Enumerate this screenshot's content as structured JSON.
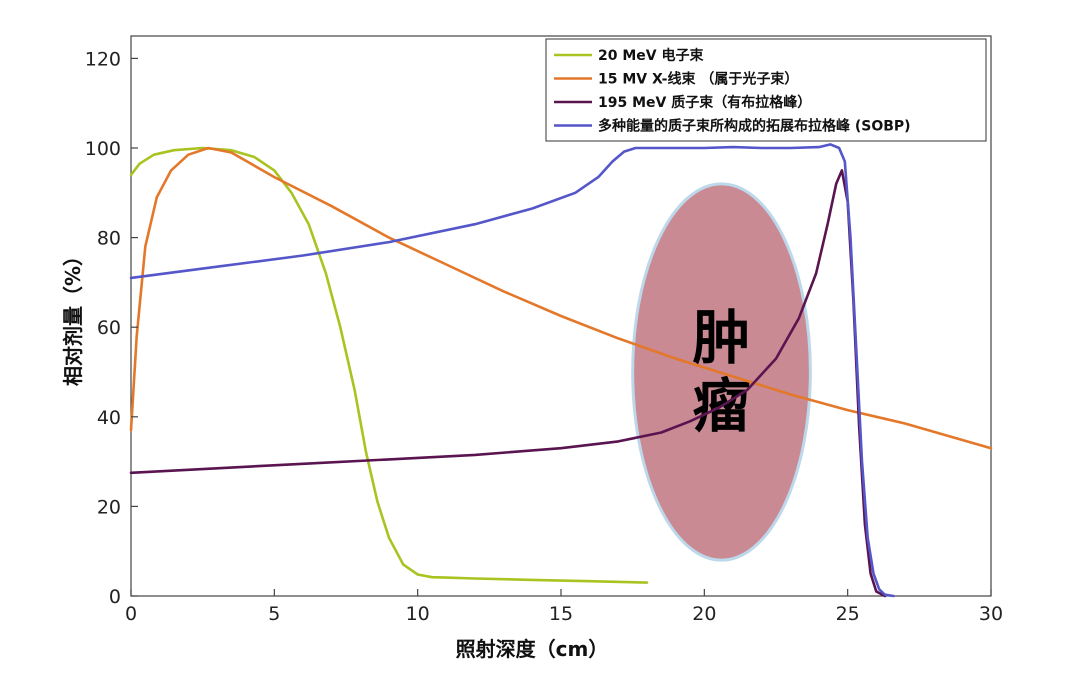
{
  "chart_data": {
    "type": "line",
    "xlabel": "照射深度（cm）",
    "ylabel": "相对剂量（%）",
    "xlim": [
      0,
      30
    ],
    "ylim": [
      0,
      125
    ],
    "xticks": [
      0,
      5,
      10,
      15,
      20,
      25,
      30
    ],
    "yticks": [
      0,
      20,
      40,
      60,
      80,
      100,
      120
    ],
    "grid": false,
    "legend_position": "top-right",
    "annotation": {
      "label_line1": "肿",
      "label_line2": "瘤",
      "center": [
        20.6,
        50
      ],
      "semi_axis_x": 3.1,
      "semi_axis_y": 42,
      "fill_color": "#c98a93",
      "stroke_color": "#bcd8ea"
    },
    "series": [
      {
        "name": "20 MeV  电子束",
        "color": "#a9c321",
        "x": [
          0,
          0.3,
          0.8,
          1.5,
          2.5,
          3.5,
          4.3,
          5.0,
          5.6,
          6.2,
          6.8,
          7.3,
          7.8,
          8.2,
          8.6,
          9.0,
          9.5,
          10.0,
          10.5,
          11.0,
          12.0,
          14.0,
          16.0,
          18.0
        ],
        "y": [
          94,
          96.5,
          98.5,
          99.5,
          100,
          99.5,
          98,
          95,
          90,
          83,
          72,
          60,
          46,
          32,
          21,
          13,
          7,
          4.8,
          4.2,
          4.1,
          3.9,
          3.6,
          3.3,
          3.0
        ]
      },
      {
        "name": "15 MV  X-线束  （属于光子束）",
        "color": "#e4782a",
        "x": [
          0,
          0.2,
          0.5,
          0.9,
          1.4,
          2.0,
          2.7,
          3.5,
          5.0,
          7.0,
          9.0,
          11.0,
          13.0,
          15.0,
          17.0,
          19.0,
          21.0,
          23.0,
          25.0,
          27.0,
          30.0
        ],
        "y": [
          37,
          58,
          78,
          89,
          95,
          98.5,
          100,
          99,
          93.5,
          87,
          80,
          74,
          68,
          62.5,
          57.5,
          53,
          49,
          45,
          41.5,
          38.5,
          33
        ]
      },
      {
        "name": "195 MeV  质子束（有布拉格峰）",
        "color": "#5a1450",
        "x": [
          0,
          3,
          6,
          9,
          12,
          15,
          17,
          18.5,
          19.5,
          20.5,
          21.5,
          22.5,
          23.3,
          23.9,
          24.3,
          24.6,
          24.8,
          25.0,
          25.2,
          25.4,
          25.6,
          25.8,
          26.0,
          26.3
        ],
        "y": [
          27.5,
          28.5,
          29.5,
          30.5,
          31.5,
          33,
          34.5,
          36.5,
          39,
          42,
          46,
          53,
          62,
          72,
          83,
          92,
          95,
          88,
          66,
          38,
          16,
          5,
          1,
          0
        ]
      },
      {
        "name": "多种能量的质子束所构成的拓展布拉格峰 (SOBP)",
        "color": "#5456c9",
        "x": [
          0,
          3,
          6,
          9,
          12,
          14,
          15.5,
          16.3,
          16.8,
          17.2,
          17.6,
          18.0,
          19,
          20,
          21,
          22,
          23,
          24,
          24.4,
          24.7,
          24.9,
          25.1,
          25.3,
          25.5,
          25.7,
          25.9,
          26.1,
          26.3,
          26.6
        ],
        "y": [
          71,
          73.5,
          76,
          79,
          83,
          86.5,
          90,
          93.5,
          97,
          99.2,
          100,
          100,
          100,
          100,
          100.2,
          100,
          100,
          100.2,
          100.8,
          100,
          97,
          80,
          55,
          30,
          13,
          5,
          1.5,
          0.3,
          0
        ]
      }
    ]
  }
}
